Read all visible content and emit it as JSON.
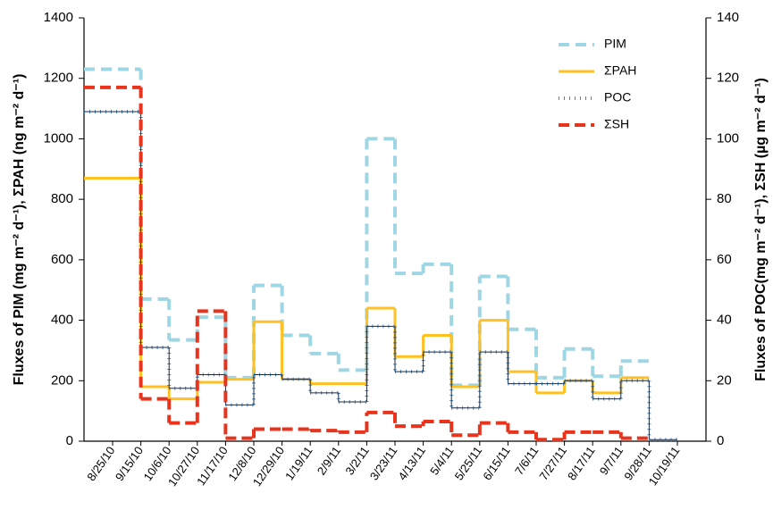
{
  "chart_data": {
    "type": "step",
    "y_label": "Fluxes of PIM (mg m⁻² d⁻¹), ΣPAH (ng m⁻² d⁻¹)",
    "y2_label": "Fluxes of POC(mg m⁻² d⁻¹), ΣSH (µg m⁻² d⁻¹)",
    "categories": [
      "8/25/10",
      "9/15/10",
      "10/6/10",
      "10/27/10",
      "11/17/10",
      "12/8/10",
      "12/29/10",
      "1/19/11",
      "2/9/11",
      "3/2/11",
      "3/23/11",
      "4/13/11",
      "5/4/11",
      "5/25/11",
      "6/15/11",
      "7/6/11",
      "7/27/11",
      "8/17/11",
      "9/7/11",
      "9/28/11",
      "10/19/11"
    ],
    "ylim": [
      0,
      1400
    ],
    "yticks": [
      0,
      200,
      400,
      600,
      800,
      1000,
      1200,
      1400
    ],
    "y2lim": [
      0,
      140
    ],
    "y2ticks": [
      0,
      20,
      40,
      60,
      80,
      100,
      120,
      140
    ],
    "legend": "upper right",
    "series": [
      {
        "name": "PIM",
        "color": "#9fd6e4",
        "dash": "12,7",
        "width": 4,
        "values": [
          1230,
          470,
          335,
          410,
          210,
          515,
          350,
          290,
          235,
          1000,
          555,
          585,
          185,
          545,
          370,
          210,
          305,
          215,
          265,
          null,
          null
        ]
      },
      {
        "name": "ΣPAH",
        "color": "#ffc020",
        "width": 3,
        "values": [
          870,
          180,
          140,
          195,
          205,
          395,
          205,
          190,
          190,
          440,
          280,
          350,
          180,
          400,
          230,
          160,
          200,
          160,
          210,
          null,
          null
        ]
      },
      {
        "name": "POC",
        "color": "#4a86c0",
        "dash": "1,5",
        "width": 4,
        "axis": "y2",
        "values": [
          109,
          31,
          17.5,
          22,
          12,
          22,
          20.5,
          16,
          13,
          38,
          23,
          29.5,
          11,
          29.5,
          19,
          19,
          20,
          14,
          20,
          0.5,
          null
        ]
      },
      {
        "name": "ΣSH",
        "color": "#e8341c",
        "dash": "12,6",
        "width": 4,
        "axis": "y2",
        "values": [
          117,
          14,
          6,
          43,
          1,
          4,
          4,
          3.5,
          3,
          9.5,
          5,
          6.5,
          2,
          6,
          3,
          0.5,
          3,
          3,
          1,
          null,
          null
        ]
      }
    ]
  }
}
